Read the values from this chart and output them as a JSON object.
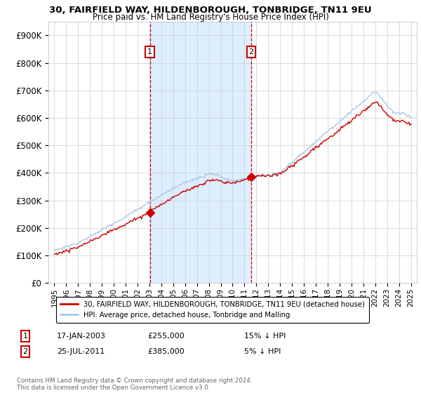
{
  "title1": "30, FAIRFIELD WAY, HILDENBOROUGH, TONBRIDGE, TN11 9EU",
  "title2": "Price paid vs. HM Land Registry's House Price Index (HPI)",
  "legend_line1": "30, FAIRFIELD WAY, HILDENBOROUGH, TONBRIDGE, TN11 9EU (detached house)",
  "legend_line2": "HPI: Average price, detached house, Tonbridge and Malling",
  "sale1_label": "1",
  "sale1_date": "17-JAN-2003",
  "sale1_price": "£255,000",
  "sale1_hpi": "15% ↓ HPI",
  "sale1_year": 2003.04,
  "sale1_value": 255000,
  "sale2_label": "2",
  "sale2_date": "25-JUL-2011",
  "sale2_price": "£385,000",
  "sale2_hpi": "5% ↓ HPI",
  "sale2_year": 2011.56,
  "sale2_value": 385000,
  "hpi_color": "#a8c8e8",
  "price_color": "#cc0000",
  "dashed_color": "#cc0000",
  "shade_color": "#ddeeff",
  "background_color": "#ffffff",
  "grid_color": "#cccccc",
  "footer": "Contains HM Land Registry data © Crown copyright and database right 2024.\nThis data is licensed under the Open Government Licence v3.0.",
  "ylim": [
    0,
    950000
  ],
  "yticks": [
    0,
    100000,
    200000,
    300000,
    400000,
    500000,
    600000,
    700000,
    800000,
    900000
  ],
  "ytick_labels": [
    "£0",
    "£100K",
    "£200K",
    "£300K",
    "£400K",
    "£500K",
    "£600K",
    "£700K",
    "£800K",
    "£900K"
  ]
}
